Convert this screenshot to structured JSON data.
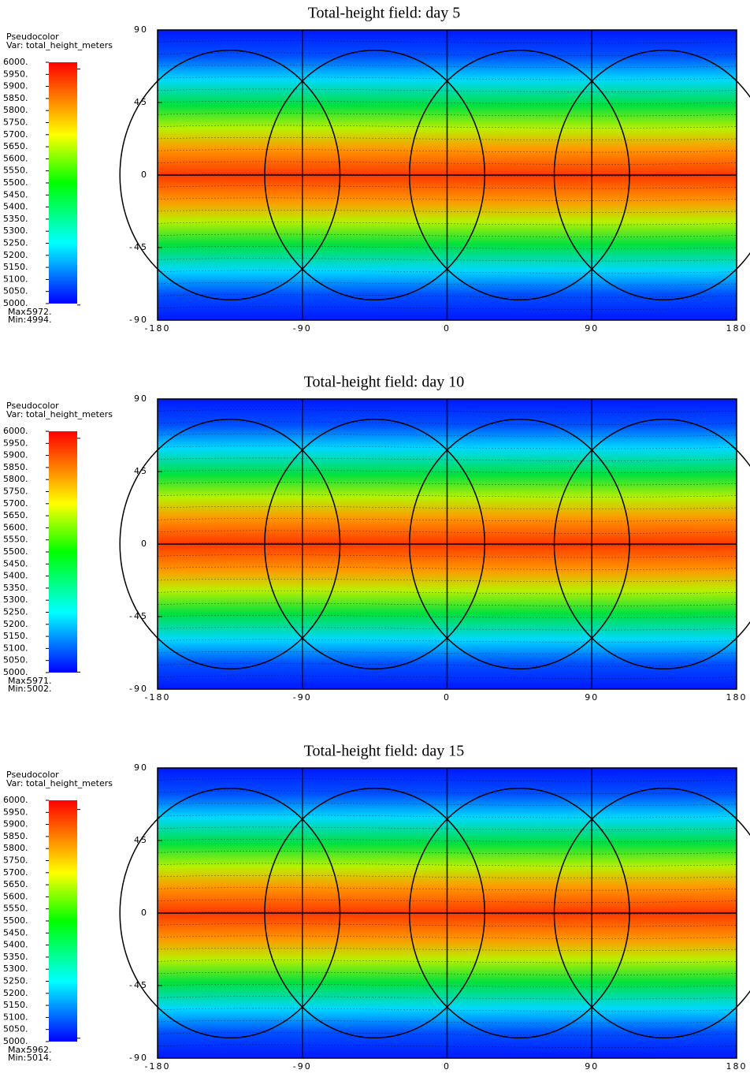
{
  "chart_data": [
    {
      "type": "heatmap",
      "title": "Total-height field: day 5",
      "legend_title": "Pseudocolor",
      "legend_var": "Var: total_height_meters",
      "xlim": [
        -180,
        180
      ],
      "xticks": [
        -180,
        -90,
        0,
        90,
        180
      ],
      "ylim": [
        -90,
        90
      ],
      "yticks": [
        -90,
        -45,
        0,
        45,
        90
      ],
      "clim": [
        5000,
        6000
      ],
      "cticks": [
        {
          "value": 6000,
          "label": "6000."
        },
        {
          "value": 5950,
          "label": "5950."
        },
        {
          "value": 5900,
          "label": "5900."
        },
        {
          "value": 5850,
          "label": "5850."
        },
        {
          "value": 5800,
          "label": "5800."
        },
        {
          "value": 5750,
          "label": "5750."
        },
        {
          "value": 5700,
          "label": "5700."
        },
        {
          "value": 5650,
          "label": "5650."
        },
        {
          "value": 5600,
          "label": "5600."
        },
        {
          "value": 5550,
          "label": "5550."
        },
        {
          "value": 5500,
          "label": "5500."
        },
        {
          "value": 5450,
          "label": "5450."
        },
        {
          "value": 5400,
          "label": "5400."
        },
        {
          "value": 5350,
          "label": "5350."
        },
        {
          "value": 5300,
          "label": "5300."
        },
        {
          "value": 5250,
          "label": "5250."
        },
        {
          "value": 5200,
          "label": "5200."
        },
        {
          "value": 5150,
          "label": "5150."
        },
        {
          "value": 5100,
          "label": "5100."
        },
        {
          "value": 5050,
          "label": "5050."
        },
        {
          "value": 5000,
          "label": "5000."
        }
      ],
      "max_title": "Max:",
      "max": {
        "value": 5972,
        "label": "5972."
      },
      "min_title": "Min:",
      "min": {
        "value": 4994,
        "label": "4994."
      }
    },
    {
      "type": "heatmap",
      "title": "Total-height field: day 10",
      "legend_title": "Pseudocolor",
      "legend_var": "Var: total_height_meters",
      "xlim": [
        -180,
        180
      ],
      "xticks": [
        -180,
        -90,
        0,
        90,
        180
      ],
      "ylim": [
        -90,
        90
      ],
      "yticks": [
        -90,
        -45,
        0,
        45,
        90
      ],
      "clim": [
        5000,
        6000
      ],
      "cticks": [
        {
          "value": 6000,
          "label": "6000."
        },
        {
          "value": 5950,
          "label": "5950."
        },
        {
          "value": 5900,
          "label": "5900."
        },
        {
          "value": 5850,
          "label": "5850."
        },
        {
          "value": 5800,
          "label": "5800."
        },
        {
          "value": 5750,
          "label": "5750."
        },
        {
          "value": 5700,
          "label": "5700."
        },
        {
          "value": 5650,
          "label": "5650."
        },
        {
          "value": 5600,
          "label": "5600."
        },
        {
          "value": 5550,
          "label": "5550."
        },
        {
          "value": 5500,
          "label": "5500."
        },
        {
          "value": 5450,
          "label": "5450."
        },
        {
          "value": 5400,
          "label": "5400."
        },
        {
          "value": 5350,
          "label": "5350."
        },
        {
          "value": 5300,
          "label": "5300."
        },
        {
          "value": 5250,
          "label": "5250."
        },
        {
          "value": 5200,
          "label": "5200."
        },
        {
          "value": 5150,
          "label": "5150."
        },
        {
          "value": 5100,
          "label": "5100."
        },
        {
          "value": 5050,
          "label": "5050."
        },
        {
          "value": 5000,
          "label": "5000."
        }
      ],
      "max_title": "Max:",
      "max": {
        "value": 5971,
        "label": "5971."
      },
      "min_title": "Min:",
      "min": {
        "value": 5002,
        "label": "5002."
      }
    },
    {
      "type": "heatmap",
      "title": "Total-height field: day 15",
      "legend_title": "Pseudocolor",
      "legend_var": "Var: total_height_meters",
      "xlim": [
        -180,
        180
      ],
      "xticks": [
        -180,
        -90,
        0,
        90,
        180
      ],
      "ylim": [
        -90,
        90
      ],
      "yticks": [
        -90,
        -45,
        0,
        45,
        90
      ],
      "clim": [
        5000,
        6000
      ],
      "cticks": [
        {
          "value": 6000,
          "label": "6000."
        },
        {
          "value": 5950,
          "label": "5950."
        },
        {
          "value": 5900,
          "label": "5900."
        },
        {
          "value": 5850,
          "label": "5850."
        },
        {
          "value": 5800,
          "label": "5800."
        },
        {
          "value": 5750,
          "label": "5750."
        },
        {
          "value": 5700,
          "label": "5700."
        },
        {
          "value": 5650,
          "label": "5650."
        },
        {
          "value": 5600,
          "label": "5600."
        },
        {
          "value": 5550,
          "label": "5550."
        },
        {
          "value": 5500,
          "label": "5500."
        },
        {
          "value": 5450,
          "label": "5450."
        },
        {
          "value": 5400,
          "label": "5400."
        },
        {
          "value": 5350,
          "label": "5350."
        },
        {
          "value": 5300,
          "label": "5300."
        },
        {
          "value": 5250,
          "label": "5250."
        },
        {
          "value": 5200,
          "label": "5200."
        },
        {
          "value": 5150,
          "label": "5150."
        },
        {
          "value": 5100,
          "label": "5100."
        },
        {
          "value": 5050,
          "label": "5050."
        },
        {
          "value": 5000,
          "label": "5000."
        }
      ],
      "max_title": "Max:",
      "max": {
        "value": 5962,
        "label": "5962."
      },
      "min_title": "Min:",
      "min": {
        "value": 5014,
        "label": "5014."
      }
    }
  ]
}
